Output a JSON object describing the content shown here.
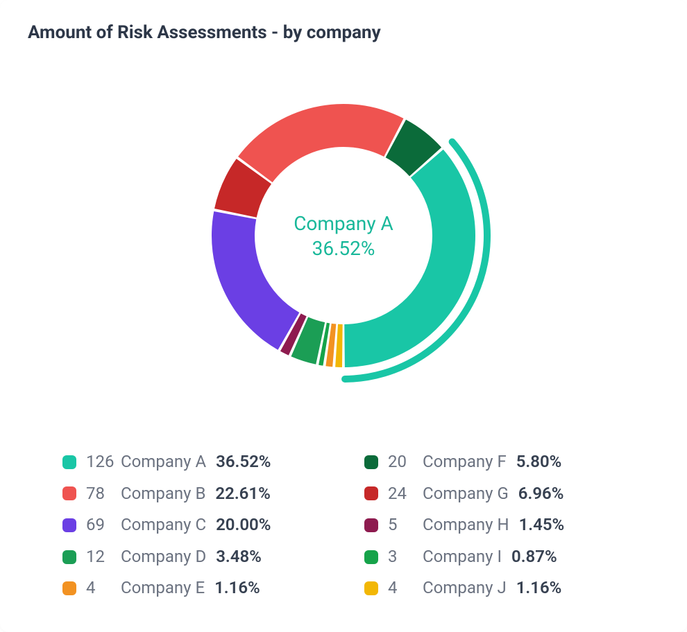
{
  "title": "Amount of Risk Assessments - by company",
  "chart": {
    "type": "donut",
    "center_label": "Company A",
    "center_pct": "36.52%",
    "center_color": "#19b89a",
    "background_color": "#ffffff",
    "outer_radius": 190,
    "inner_radius": 128,
    "gap_deg": 1.2,
    "start_angle_deg": -90,
    "highlight_index": 0,
    "highlight_arc_gap": 12,
    "highlight_arc_thickness": 10,
    "slices": [
      {
        "label": "Company A",
        "count": 126,
        "pct": 36.52,
        "color": "#19c6a6"
      },
      {
        "label": "Company F",
        "count": 20,
        "pct": 5.8,
        "color": "#0b6b3a"
      },
      {
        "label": "Company B",
        "count": 78,
        "pct": 22.61,
        "color": "#ef5350"
      },
      {
        "label": "Company G",
        "count": 24,
        "pct": 6.96,
        "color": "#c62828"
      },
      {
        "label": "Company C",
        "count": 69,
        "pct": 20.0,
        "color": "#6b3fe4"
      },
      {
        "label": "Company H",
        "count": 5,
        "pct": 1.45,
        "color": "#8e1b4f"
      },
      {
        "label": "Company D",
        "count": 12,
        "pct": 3.48,
        "color": "#1b9e55"
      },
      {
        "label": "Company I",
        "count": 3,
        "pct": 0.87,
        "color": "#16a34a"
      },
      {
        "label": "Company E",
        "count": 4,
        "pct": 1.16,
        "color": "#f29222"
      },
      {
        "label": "Company J",
        "count": 4,
        "pct": 1.16,
        "color": "#f2b705"
      }
    ],
    "draw_order": [
      9,
      8,
      7,
      6,
      5,
      4,
      3,
      2,
      1,
      0
    ]
  },
  "legend": {
    "columns": 2,
    "count_color": "#6b7280",
    "name_color": "#6b7280",
    "pct_color": "#374151",
    "items_col1": [
      {
        "count": "126",
        "name": "Company A",
        "pct": "36.52%",
        "color": "#19c6a6"
      },
      {
        "count": "78",
        "name": "Company B",
        "pct": "22.61%",
        "color": "#ef5350"
      },
      {
        "count": "69",
        "name": "Company C",
        "pct": "20.00%",
        "color": "#6b3fe4"
      },
      {
        "count": "12",
        "name": "Company D",
        "pct": "3.48%",
        "color": "#1b9e55"
      },
      {
        "count": "4",
        "name": "Company E",
        "pct": "1.16%",
        "color": "#f29222"
      }
    ],
    "items_col2": [
      {
        "count": "20",
        "name": "Company F",
        "pct": "5.80%",
        "color": "#0b6b3a"
      },
      {
        "count": "24",
        "name": "Company G",
        "pct": "6.96%",
        "color": "#c62828"
      },
      {
        "count": "5",
        "name": "Company H",
        "pct": "1.45%",
        "color": "#8e1b4f"
      },
      {
        "count": "3",
        "name": "Company I",
        "pct": "0.87%",
        "color": "#16a34a"
      },
      {
        "count": "4",
        "name": "Company J",
        "pct": "1.16%",
        "color": "#f2b705"
      }
    ]
  }
}
